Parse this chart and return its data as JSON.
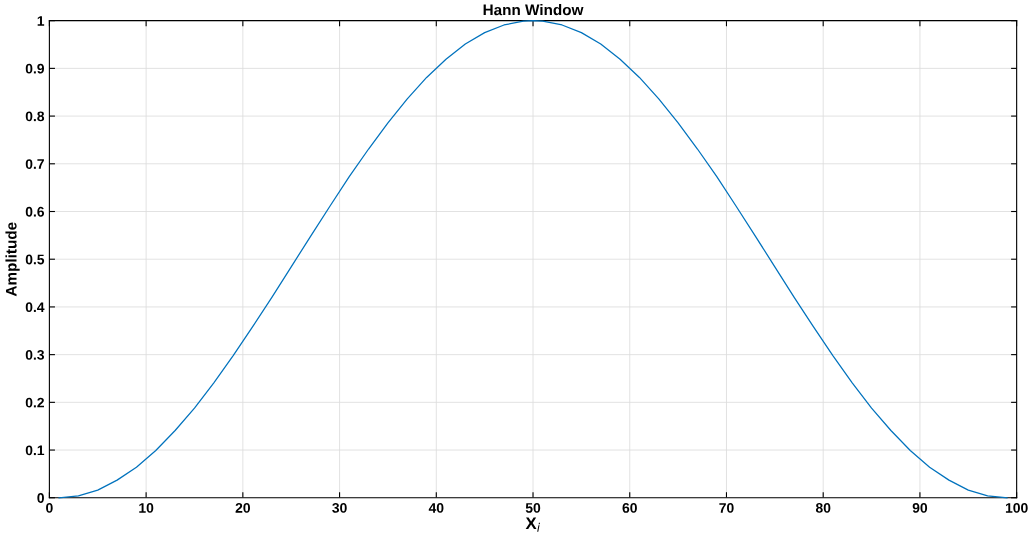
{
  "chart_data": {
    "type": "line",
    "title": "Hann Window",
    "xlabel": "X$_{i}$",
    "ylabel": "Amplitude",
    "x": [
      1,
      3,
      5,
      7,
      9,
      11,
      13,
      15,
      17,
      19,
      21,
      23,
      25,
      27,
      29,
      31,
      33,
      35,
      37,
      39,
      41,
      43,
      45,
      47,
      49,
      50,
      51,
      53,
      55,
      57,
      59,
      61,
      63,
      65,
      67,
      69,
      71,
      73,
      75,
      77,
      79,
      81,
      83,
      85,
      87,
      89,
      91,
      93,
      95,
      97,
      99
    ],
    "series": [
      {
        "color": "#0072bd",
        "values": [
          0,
          0.004,
          0.016,
          0.037,
          0.064,
          0.099,
          0.141,
          0.188,
          0.241,
          0.298,
          0.358,
          0.42,
          0.484,
          0.548,
          0.611,
          0.673,
          0.731,
          0.786,
          0.836,
          0.881,
          0.919,
          0.951,
          0.975,
          0.991,
          0.999,
          1,
          0.999,
          0.991,
          0.975,
          0.951,
          0.919,
          0.881,
          0.836,
          0.786,
          0.731,
          0.673,
          0.611,
          0.548,
          0.484,
          0.42,
          0.358,
          0.298,
          0.241,
          0.188,
          0.141,
          0.099,
          0.064,
          0.037,
          0.016,
          0.004,
          0
        ]
      }
    ],
    "xlim": [
      0,
      100
    ],
    "xticks": [
      0,
      10,
      20,
      30,
      40,
      50,
      60,
      70,
      80,
      90,
      100
    ],
    "ylim": [
      0,
      1
    ],
    "yticks": [
      0,
      0.1,
      0.2,
      0.3,
      0.4,
      0.5,
      0.6,
      0.7,
      0.8,
      0.9,
      1
    ],
    "grid": true,
    "legend": false,
    "marker": "none",
    "line_style": "solid"
  }
}
